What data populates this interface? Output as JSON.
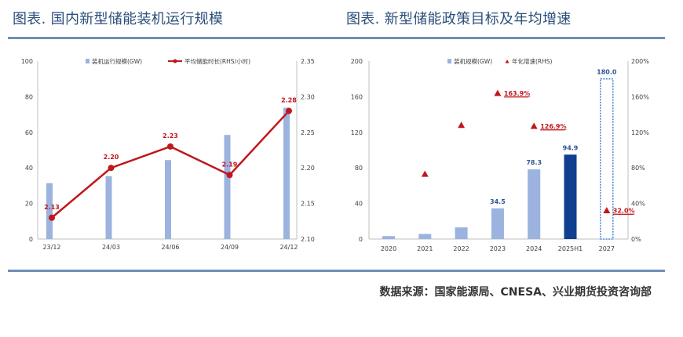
{
  "left": {
    "title": "图表. 国内新型储能装机运行规模"
  },
  "right": {
    "title": "图表. 新型储能政策目标及年均增速"
  },
  "source": "数据来源：国家能源局、CNESA、兴业期货投资咨询部",
  "colors": {
    "title": "#2a4e7a",
    "rule": "#6f8fb6",
    "bar_light": "#9bb3de",
    "bar_dark": "#0f3f8e",
    "bar_outline": "#2e6fcf",
    "line_red": "#c0171c",
    "label_blue": "#2f5597"
  },
  "chart_data": [
    {
      "type": "bar",
      "title": "",
      "categories": [
        "23/12",
        "24/03",
        "24/06",
        "24/09",
        "24/12"
      ],
      "series": [
        {
          "name": "装机运行规模(GW)",
          "type": "bar",
          "axis": "left",
          "values": [
            31.4,
            35.3,
            44.4,
            58.5,
            73.8
          ]
        },
        {
          "name": "平均储能时长(RHS/小时)",
          "type": "line",
          "axis": "right",
          "values": [
            2.13,
            2.2,
            2.23,
            2.19,
            2.28
          ],
          "labels": [
            "2.13",
            "2.20",
            "2.23",
            "2.19",
            "2.28"
          ]
        }
      ],
      "ylim": [
        0,
        100
      ],
      "yticks": [
        "0",
        "20",
        "40",
        "60",
        "80",
        "100"
      ],
      "y2lim": [
        2.1,
        2.35
      ],
      "y2ticks": [
        "2.10",
        "2.15",
        "2.20",
        "2.25",
        "2.30",
        "2.35"
      ],
      "legend": "top",
      "grid": false
    },
    {
      "type": "bar",
      "title": "",
      "categories": [
        "2020",
        "2021",
        "2022",
        "2023",
        "2024",
        "2025H1",
        "2027"
      ],
      "series": [
        {
          "name": "装机规模(GW)",
          "type": "bar",
          "axis": "left",
          "values": [
            3.3,
            5.7,
            13.1,
            34.5,
            78.3,
            94.9,
            180.0
          ],
          "labels": [
            "",
            "",
            "",
            "34.5",
            "78.3",
            "94.9",
            "180.0"
          ],
          "styles": [
            "light",
            "light",
            "light",
            "light",
            "light",
            "dark",
            "target"
          ]
        },
        {
          "name": "年化增速(RHS)",
          "type": "scatter",
          "axis": "right",
          "values": [
            null,
            0.73,
            1.28,
            1.639,
            1.269,
            null,
            0.32
          ],
          "labels": [
            "",
            "",
            "",
            "163.9%",
            "126.9%",
            "",
            "32.0%"
          ]
        }
      ],
      "ylim": [
        0,
        200
      ],
      "yticks": [
        "0",
        "40",
        "80",
        "120",
        "160",
        "200"
      ],
      "y2lim": [
        0,
        2.0
      ],
      "y2ticks": [
        "0%",
        "40%",
        "80%",
        "120%",
        "160%",
        "200%"
      ],
      "legend": "top",
      "grid": false
    }
  ]
}
